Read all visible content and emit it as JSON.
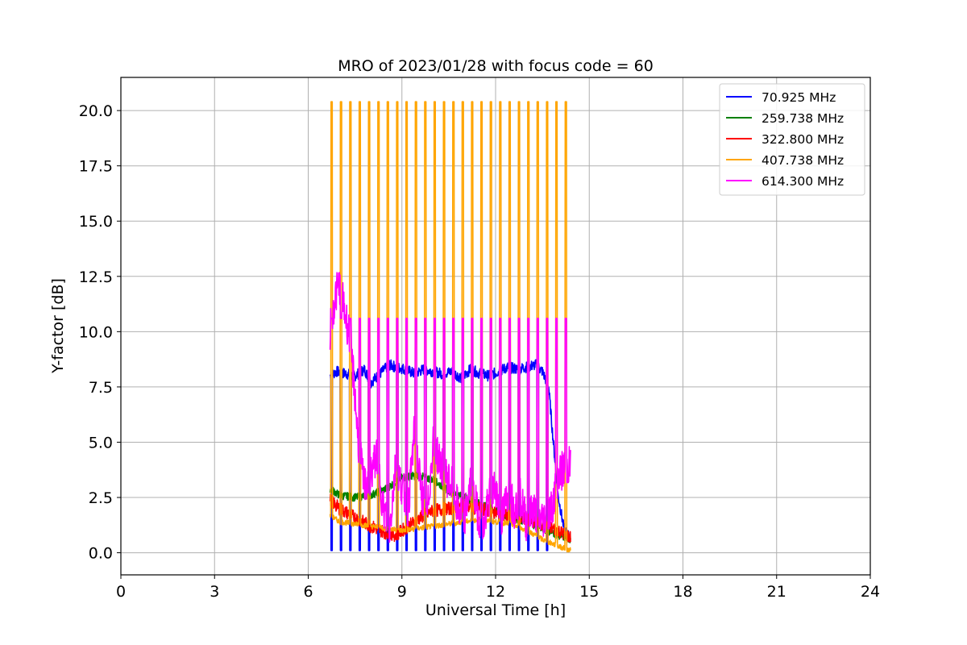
{
  "chart_data": {
    "type": "line",
    "title": "MRO of 2023/01/28 with focus code = 60",
    "xlabel": "Universal Time [h]",
    "ylabel": "Y-factor [dB]",
    "xlim": [
      0,
      24
    ],
    "ylim": [
      -1.0,
      21.5
    ],
    "xticks": [
      0,
      3,
      6,
      9,
      12,
      15,
      18,
      21,
      24
    ],
    "xtick_labels": [
      "0",
      "3",
      "6",
      "9",
      "12",
      "15",
      "18",
      "21",
      "24"
    ],
    "yticks": [
      0,
      2.5,
      5,
      7.5,
      10,
      12.5,
      15,
      17.5,
      20
    ],
    "ytick_labels": [
      "0.0",
      "2.5",
      "5.0",
      "7.5",
      "10.0",
      "12.5",
      "15.0",
      "17.5",
      "20.0"
    ],
    "grid": true,
    "legend_position": "top-right",
    "series": [
      {
        "name": " 70.925 MHz",
        "color": "#0000ff",
        "x": [
          6.7,
          6.9,
          7.2,
          7.5,
          7.8,
          8.0,
          8.3,
          8.6,
          8.8,
          9.1,
          9.4,
          9.7,
          10.0,
          10.3,
          10.6,
          10.9,
          11.2,
          11.5,
          11.8,
          12.1,
          12.4,
          12.7,
          13.0,
          13.3,
          13.5,
          13.7,
          13.85,
          14.0,
          14.2,
          14.4
        ],
        "y": [
          8.0,
          8.2,
          8.1,
          8.0,
          8.3,
          7.7,
          8.1,
          8.5,
          8.4,
          8.3,
          8.1,
          8.3,
          8.2,
          8.1,
          8.2,
          7.9,
          8.3,
          8.1,
          8.0,
          8.2,
          8.4,
          8.3,
          8.4,
          8.5,
          8.2,
          7.5,
          5.0,
          2.6,
          1.0,
          0.7
        ]
      },
      {
        "name": "259.738 MHz",
        "color": "#008000",
        "x": [
          6.7,
          7.0,
          7.5,
          8.0,
          8.5,
          9.0,
          9.5,
          10.0,
          10.5,
          11.0,
          11.5,
          12.0,
          12.5,
          13.0,
          13.5,
          14.0,
          14.4
        ],
        "y": [
          2.9,
          2.6,
          2.5,
          2.6,
          2.9,
          3.4,
          3.5,
          3.3,
          2.8,
          2.5,
          2.2,
          1.9,
          1.6,
          1.4,
          1.1,
          0.8,
          0.6
        ]
      },
      {
        "name": "322.800 MHz",
        "color": "#ff0000",
        "x": [
          6.7,
          7.0,
          7.5,
          8.0,
          8.5,
          8.8,
          9.2,
          9.6,
          10.0,
          10.5,
          11.0,
          11.5,
          12.0,
          12.5,
          13.0,
          13.5,
          14.0,
          14.4
        ],
        "y": [
          2.4,
          2.0,
          1.6,
          1.2,
          0.9,
          0.8,
          1.2,
          1.6,
          1.9,
          2.0,
          2.1,
          2.0,
          1.8,
          1.6,
          1.5,
          1.3,
          1.0,
          0.7
        ]
      },
      {
        "name": "407.738 MHz",
        "color": "#ffa500",
        "x": [
          6.7,
          7.0,
          7.5,
          8.0,
          8.5,
          9.0,
          9.5,
          10.0,
          10.5,
          11.0,
          11.5,
          12.0,
          12.5,
          13.0,
          13.5,
          14.0,
          14.4
        ],
        "y": [
          1.7,
          1.4,
          1.3,
          1.2,
          1.1,
          1.0,
          1.1,
          1.2,
          1.3,
          1.4,
          1.5,
          1.4,
          1.3,
          1.0,
          0.6,
          0.3,
          0.1
        ]
      },
      {
        "name": "614.300 MHz",
        "color": "#ff00ff",
        "x": [
          6.7,
          6.85,
          7.0,
          7.15,
          7.3,
          7.45,
          7.6,
          7.8,
          8.0,
          8.2,
          8.4,
          8.6,
          8.8,
          9.0,
          9.2,
          9.4,
          9.6,
          9.8,
          10.0,
          10.2,
          10.4,
          10.6,
          10.8,
          11.0,
          11.2,
          11.4,
          11.6,
          11.8,
          12.0,
          12.2,
          12.4,
          12.6,
          12.8,
          13.0,
          13.2,
          13.4,
          13.6,
          13.8,
          14.0,
          14.2,
          14.4
        ],
        "y": [
          10.0,
          11.5,
          12.2,
          11.0,
          10.0,
          8.0,
          5.0,
          3.0,
          3.5,
          4.5,
          2.0,
          1.0,
          4.0,
          3.0,
          2.0,
          5.5,
          3.0,
          1.5,
          5.0,
          4.2,
          3.5,
          3.0,
          2.0,
          1.5,
          3.2,
          2.0,
          1.0,
          2.5,
          3.0,
          1.5,
          2.8,
          2.0,
          2.5,
          1.3,
          2.0,
          1.5,
          1.6,
          2.0,
          3.5,
          3.8,
          4.0
        ]
      }
    ],
    "calibration_pulses": [
      {
        "series": "407.738 MHz",
        "description": "periodic calibration spikes",
        "x": [
          6.75,
          7.05,
          7.35,
          7.65,
          7.95,
          8.25,
          8.55,
          8.85,
          9.15,
          9.45,
          9.75,
          10.05,
          10.35,
          10.65,
          10.95,
          11.25,
          11.55,
          11.85,
          12.15,
          12.45,
          12.75,
          13.05,
          13.35,
          13.65,
          13.95,
          14.25
        ],
        "peak_y": 20.4
      },
      {
        "series": "614.300 MHz",
        "description": "periodic calibration spikes",
        "x": [
          6.75,
          7.05,
          7.35,
          7.65,
          7.95,
          8.25,
          8.55,
          8.85,
          9.15,
          9.45,
          9.75,
          10.05,
          10.35,
          10.65,
          10.95,
          11.25,
          11.55,
          11.85,
          12.15,
          12.45,
          12.75,
          13.05,
          13.35,
          13.65,
          13.95,
          14.25
        ],
        "peak_y": 10.6
      },
      {
        "series": " 70.925 MHz",
        "description": "periodic calibration dips",
        "x": [
          6.75,
          7.05,
          7.35,
          7.65,
          7.95,
          8.25,
          8.55,
          8.85,
          9.15,
          9.45,
          9.75,
          10.05,
          10.35,
          10.65,
          10.95,
          11.25,
          11.55,
          11.85,
          12.15,
          12.45,
          12.75,
          13.05,
          13.35,
          13.65
        ],
        "dip_y": 0.1
      }
    ]
  }
}
